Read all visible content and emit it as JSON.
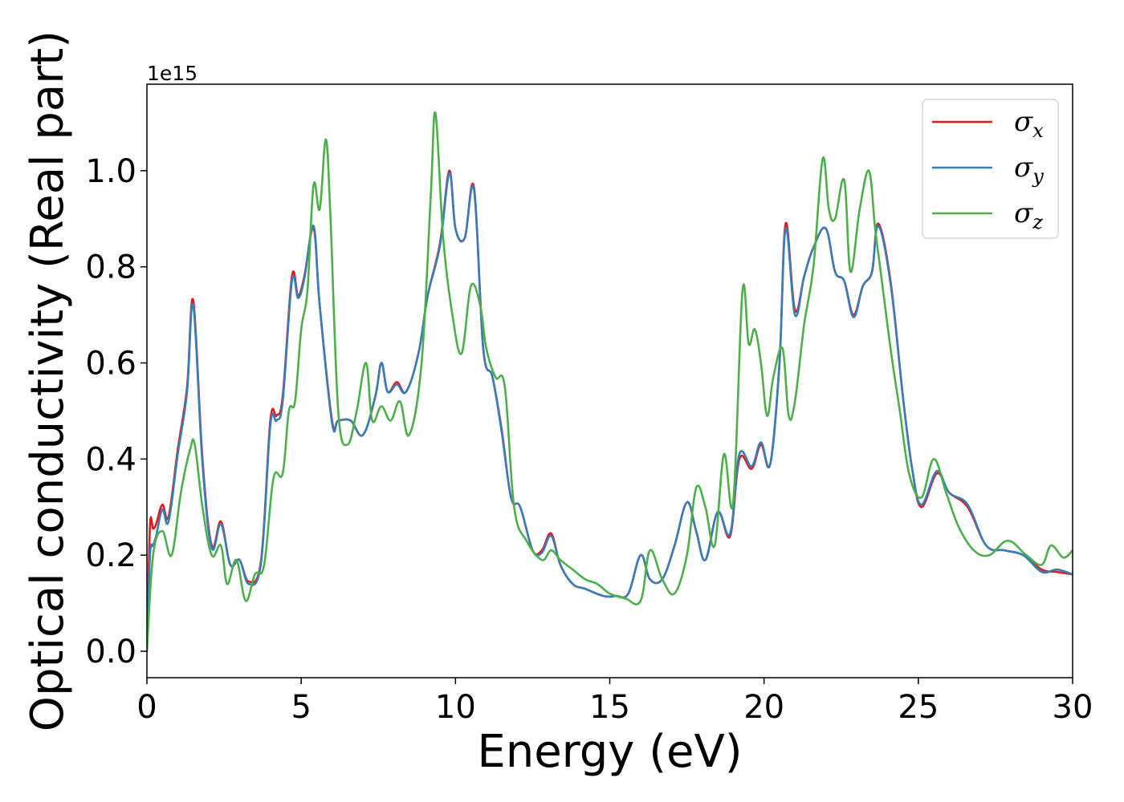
{
  "chart_data": {
    "type": "line",
    "xlabel": "Energy (eV)",
    "ylabel": "Optical conductivity (Real part)",
    "y_offset_label": "1e15",
    "xlim": [
      0,
      30
    ],
    "ylim": [
      -0.055,
      1.18
    ],
    "xticks": [
      0,
      5,
      10,
      15,
      20,
      25,
      30
    ],
    "yticks": [
      0.0,
      0.2,
      0.4,
      0.6,
      0.8,
      1.0
    ],
    "ytick_labels": [
      "0.0",
      "0.2",
      "0.4",
      "0.6",
      "0.8",
      "1.0"
    ],
    "grid": false,
    "legend_position": "top-right",
    "series": [
      {
        "name": "σx",
        "symbol": "σ",
        "subscript": "x",
        "color": "#e41a1c",
        "x": [
          0,
          0.1,
          0.2,
          0.3,
          0.5,
          0.7,
          1.0,
          1.3,
          1.5,
          1.8,
          2.1,
          2.4,
          2.7,
          3.0,
          3.3,
          3.7,
          4.0,
          4.2,
          4.4,
          4.7,
          4.9,
          5.1,
          5.4,
          5.6,
          6.0,
          6.2,
          6.6,
          7.0,
          7.4,
          7.6,
          7.8,
          8.1,
          8.4,
          8.8,
          9.1,
          9.5,
          9.8,
          10.0,
          10.3,
          10.6,
          10.9,
          11.2,
          11.5,
          11.8,
          12.1,
          12.5,
          12.8,
          13.1,
          13.4,
          13.8,
          14.2,
          14.8,
          15.2,
          15.6,
          16.0,
          16.3,
          16.7,
          17.1,
          17.5,
          17.8,
          18.1,
          18.5,
          18.9,
          19.2,
          19.6,
          19.9,
          20.2,
          20.5,
          20.7,
          21.0,
          21.3,
          21.6,
          22.0,
          22.3,
          22.6,
          22.9,
          23.2,
          23.5,
          23.7,
          24.1,
          24.5,
          24.8,
          25.1,
          25.6,
          26.0,
          26.6,
          27.2,
          27.8,
          28.4,
          29.0,
          29.5,
          30.0
        ],
        "y": [
          0,
          0.26,
          0.255,
          0.265,
          0.305,
          0.28,
          0.42,
          0.55,
          0.73,
          0.4,
          0.22,
          0.27,
          0.18,
          0.19,
          0.145,
          0.19,
          0.48,
          0.49,
          0.53,
          0.78,
          0.74,
          0.78,
          0.88,
          0.72,
          0.48,
          0.48,
          0.48,
          0.45,
          0.53,
          0.6,
          0.54,
          0.56,
          0.54,
          0.62,
          0.74,
          0.85,
          1.0,
          0.88,
          0.86,
          0.965,
          0.63,
          0.57,
          0.46,
          0.32,
          0.3,
          0.21,
          0.21,
          0.245,
          0.18,
          0.14,
          0.13,
          0.115,
          0.115,
          0.12,
          0.2,
          0.15,
          0.15,
          0.22,
          0.31,
          0.25,
          0.19,
          0.29,
          0.24,
          0.4,
          0.38,
          0.43,
          0.39,
          0.6,
          0.89,
          0.71,
          0.78,
          0.84,
          0.88,
          0.79,
          0.77,
          0.7,
          0.76,
          0.79,
          0.89,
          0.77,
          0.53,
          0.38,
          0.3,
          0.37,
          0.33,
          0.3,
          0.22,
          0.21,
          0.2,
          0.17,
          0.165,
          0.16
        ]
      },
      {
        "name": "σy",
        "symbol": "σ",
        "subscript": "y",
        "color": "#377eb8",
        "x": [
          0,
          0.1,
          0.2,
          0.3,
          0.5,
          0.7,
          1.0,
          1.3,
          1.5,
          1.8,
          2.1,
          2.4,
          2.7,
          3.0,
          3.3,
          3.7,
          4.0,
          4.2,
          4.4,
          4.7,
          4.9,
          5.1,
          5.4,
          5.6,
          6.0,
          6.2,
          6.6,
          7.0,
          7.4,
          7.6,
          7.8,
          8.1,
          8.4,
          8.8,
          9.1,
          9.5,
          9.8,
          10.0,
          10.3,
          10.6,
          10.9,
          11.2,
          11.5,
          11.8,
          12.1,
          12.5,
          12.8,
          13.1,
          13.4,
          13.8,
          14.2,
          14.8,
          15.2,
          15.6,
          16.0,
          16.3,
          16.7,
          17.1,
          17.5,
          17.8,
          18.1,
          18.5,
          18.9,
          19.2,
          19.6,
          19.9,
          20.2,
          20.5,
          20.7,
          21.0,
          21.3,
          21.6,
          22.0,
          22.3,
          22.6,
          22.9,
          23.2,
          23.5,
          23.7,
          24.1,
          24.5,
          24.8,
          25.1,
          25.6,
          26.0,
          26.6,
          27.2,
          27.8,
          28.4,
          29.0,
          29.5,
          30.0
        ],
        "y": [
          0,
          0.2,
          0.22,
          0.24,
          0.295,
          0.27,
          0.41,
          0.54,
          0.72,
          0.39,
          0.215,
          0.265,
          0.18,
          0.19,
          0.14,
          0.185,
          0.47,
          0.48,
          0.52,
          0.77,
          0.735,
          0.775,
          0.885,
          0.72,
          0.475,
          0.48,
          0.48,
          0.45,
          0.53,
          0.6,
          0.54,
          0.555,
          0.54,
          0.62,
          0.74,
          0.845,
          0.995,
          0.88,
          0.86,
          0.96,
          0.63,
          0.57,
          0.455,
          0.32,
          0.3,
          0.21,
          0.205,
          0.24,
          0.18,
          0.14,
          0.13,
          0.115,
          0.115,
          0.12,
          0.2,
          0.15,
          0.15,
          0.22,
          0.31,
          0.25,
          0.19,
          0.29,
          0.245,
          0.41,
          0.385,
          0.435,
          0.39,
          0.6,
          0.88,
          0.7,
          0.78,
          0.84,
          0.88,
          0.79,
          0.77,
          0.695,
          0.76,
          0.79,
          0.885,
          0.765,
          0.53,
          0.38,
          0.305,
          0.375,
          0.33,
          0.305,
          0.22,
          0.21,
          0.2,
          0.165,
          0.17,
          0.16
        ]
      },
      {
        "name": "σz",
        "symbol": "σ",
        "subscript": "z",
        "color": "#4daf4a",
        "x": [
          0,
          0.2,
          0.5,
          0.8,
          1.1,
          1.4,
          1.55,
          1.8,
          2.1,
          2.4,
          2.6,
          2.9,
          3.2,
          3.5,
          3.8,
          4.1,
          4.4,
          4.6,
          4.8,
          5.0,
          5.2,
          5.4,
          5.6,
          5.8,
          5.95,
          6.2,
          6.5,
          6.8,
          7.1,
          7.3,
          7.6,
          7.9,
          8.2,
          8.5,
          8.9,
          9.2,
          9.35,
          9.6,
          9.9,
          10.2,
          10.5,
          10.8,
          11.0,
          11.3,
          11.6,
          11.9,
          12.3,
          12.8,
          13.1,
          13.4,
          13.8,
          14.2,
          14.6,
          15.0,
          15.5,
          16.0,
          16.3,
          16.7,
          17.1,
          17.5,
          17.8,
          18.1,
          18.4,
          18.7,
          19.0,
          19.3,
          19.5,
          19.7,
          19.9,
          20.1,
          20.3,
          20.6,
          20.8,
          21.0,
          21.3,
          21.6,
          21.9,
          22.1,
          22.3,
          22.6,
          22.8,
          23.1,
          23.4,
          23.6,
          23.8,
          24.1,
          24.4,
          24.7,
          25.1,
          25.5,
          25.9,
          26.3,
          26.8,
          27.3,
          27.9,
          28.5,
          29.0,
          29.3,
          29.7,
          30.0
        ],
        "y": [
          0,
          0.2,
          0.25,
          0.2,
          0.33,
          0.42,
          0.43,
          0.3,
          0.2,
          0.22,
          0.14,
          0.19,
          0.105,
          0.16,
          0.18,
          0.36,
          0.37,
          0.5,
          0.52,
          0.67,
          0.75,
          0.97,
          0.92,
          1.065,
          0.9,
          0.5,
          0.43,
          0.5,
          0.6,
          0.48,
          0.51,
          0.48,
          0.52,
          0.45,
          0.6,
          0.95,
          1.12,
          0.86,
          0.7,
          0.62,
          0.76,
          0.72,
          0.63,
          0.57,
          0.55,
          0.3,
          0.23,
          0.19,
          0.21,
          0.19,
          0.17,
          0.15,
          0.14,
          0.12,
          0.11,
          0.105,
          0.21,
          0.15,
          0.12,
          0.2,
          0.34,
          0.3,
          0.22,
          0.41,
          0.31,
          0.75,
          0.64,
          0.67,
          0.6,
          0.49,
          0.57,
          0.63,
          0.49,
          0.52,
          0.68,
          0.8,
          1.025,
          0.92,
          0.9,
          0.98,
          0.79,
          0.92,
          1.0,
          0.88,
          0.78,
          0.63,
          0.5,
          0.37,
          0.32,
          0.4,
          0.33,
          0.26,
          0.21,
          0.2,
          0.23,
          0.2,
          0.18,
          0.22,
          0.195,
          0.21
        ]
      }
    ]
  }
}
